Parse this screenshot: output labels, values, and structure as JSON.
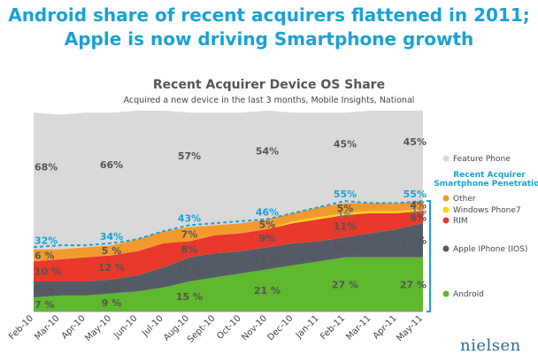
{
  "headline": {
    "line1": "Android share of recent acquirers flattened in 2011;",
    "line2": "Apple is now driving Smartphone growth"
  },
  "brand": {
    "logo_text": "nielsen"
  },
  "chart_data": {
    "type": "area",
    "title": "Recent Acquirer Device OS Share",
    "subtitle": "Acquired a new device in the last 3 months, Mobile Insights, National",
    "xlabel": "",
    "ylabel": "",
    "ylim": [
      0,
      100
    ],
    "grid": false,
    "stacked": true,
    "legend_position": "right",
    "categories": [
      "Feb-10",
      "Mar-10",
      "Apr-10",
      "May-10",
      "Jun-10",
      "Jul-10",
      "Aug-10",
      "Sept-10",
      "Oct-10",
      "Nov-10",
      "Dec-10",
      "Jan-11",
      "Feb-11",
      "Mar-11",
      "Apr-11",
      "May-11"
    ],
    "series": [
      {
        "name": "Android",
        "color": "#5fb82e",
        "values": [
          7,
          8,
          8,
          9,
          10,
          12,
          15,
          17,
          19,
          21,
          23,
          25,
          27,
          27,
          27,
          27
        ]
      },
      {
        "name": "Apple IPhone (IOS)",
        "color": "#555b66",
        "values": [
          8,
          7,
          7,
          7,
          8,
          10,
          12,
          12,
          11,
          11,
          11,
          10,
          10,
          12,
          14,
          17
        ]
      },
      {
        "name": "RIM",
        "color": "#e8392c",
        "values": [
          10,
          11,
          12,
          12,
          12,
          12,
          8,
          9,
          9,
          9,
          10,
          11,
          11,
          10,
          8,
          6
        ]
      },
      {
        "name": "Windows Phone7",
        "color": "#f7d419",
        "values": [
          0,
          0,
          0,
          0,
          0,
          0,
          0,
          0,
          0,
          0,
          1,
          1,
          1,
          1,
          1,
          1
        ]
      },
      {
        "name": "Other",
        "color": "#f39a2e",
        "values": [
          6,
          5,
          5,
          5,
          6,
          6,
          7,
          5,
          5,
          5,
          4,
          5,
          5,
          4,
          4,
          4
        ]
      },
      {
        "name": "Feature Phone",
        "color": "#d9d9d9",
        "values": [
          68,
          67,
          67,
          66,
          64,
          60,
          57,
          56,
          55,
          54,
          50,
          47,
          45,
          46,
          46,
          45
        ]
      }
    ],
    "penetration": {
      "name": "Recent Acquirer Smartphone Penetration",
      "color": "#1aa1d6",
      "values": [
        32,
        33,
        33,
        34,
        36,
        40,
        43,
        44,
        45,
        46,
        49,
        52,
        55,
        54,
        54,
        55
      ]
    },
    "data_labels": [
      {
        "series": "Feature Phone",
        "index": 0,
        "text": "68%"
      },
      {
        "series": "Feature Phone",
        "index": 3,
        "text": "66%"
      },
      {
        "series": "Feature Phone",
        "index": 6,
        "text": "57%"
      },
      {
        "series": "Feature Phone",
        "index": 9,
        "text": "54%"
      },
      {
        "series": "Feature Phone",
        "index": 12,
        "text": "45%"
      },
      {
        "series": "Feature Phone",
        "index": 15,
        "text": "45%"
      },
      {
        "series": "penetration",
        "index": 0,
        "text": "32%"
      },
      {
        "series": "penetration",
        "index": 3,
        "text": "34%"
      },
      {
        "series": "penetration",
        "index": 6,
        "text": "43%"
      },
      {
        "series": "penetration",
        "index": 9,
        "text": "46%"
      },
      {
        "series": "penetration",
        "index": 12,
        "text": "55%"
      },
      {
        "series": "penetration",
        "index": 15,
        "text": "55%"
      },
      {
        "series": "Other",
        "index": 0,
        "text": "6 %"
      },
      {
        "series": "Other",
        "index": 3,
        "text": "5 %"
      },
      {
        "series": "Other",
        "index": 6,
        "text": "7%"
      },
      {
        "series": "Other",
        "index": 9,
        "text": "5%"
      },
      {
        "series": "Other",
        "index": 12,
        "text": "5%"
      },
      {
        "series": "Other",
        "index": 15,
        "text": "4%"
      },
      {
        "series": "Windows Phone7",
        "index": 12,
        "text": "1%"
      },
      {
        "series": "Windows Phone7",
        "index": 15,
        "text": "1%"
      },
      {
        "series": "RIM",
        "index": 0,
        "text": "10 %"
      },
      {
        "series": "RIM",
        "index": 3,
        "text": "12 %"
      },
      {
        "series": "RIM",
        "index": 6,
        "text": "8%"
      },
      {
        "series": "RIM",
        "index": 9,
        "text": "9%"
      },
      {
        "series": "RIM",
        "index": 12,
        "text": "11%"
      },
      {
        "series": "RIM",
        "index": 15,
        "text": "6%"
      },
      {
        "series": "Apple IPhone (IOS)",
        "index": 0,
        "text": "8 %"
      },
      {
        "series": "Apple IPhone (IOS)",
        "index": 3,
        "text": "7 %"
      },
      {
        "series": "Apple IPhone (IOS)",
        "index": 6,
        "text": "12 %"
      },
      {
        "series": "Apple IPhone (IOS)",
        "index": 9,
        "text": "11 %"
      },
      {
        "series": "Apple IPhone (IOS)",
        "index": 12,
        "text": "10 %"
      },
      {
        "series": "Apple IPhone (IOS)",
        "index": 15,
        "text": "17 %"
      },
      {
        "series": "Android",
        "index": 0,
        "text": "7 %"
      },
      {
        "series": "Android",
        "index": 3,
        "text": "9 %"
      },
      {
        "series": "Android",
        "index": 6,
        "text": "15 %"
      },
      {
        "series": "Android",
        "index": 9,
        "text": "21 %"
      },
      {
        "series": "Android",
        "index": 12,
        "text": "27 %"
      },
      {
        "series": "Android",
        "index": 15,
        "text": "27 %"
      }
    ],
    "legend": [
      {
        "label": "Feature Phone",
        "color": "#d9d9d9",
        "kind": "dot"
      },
      {
        "label": "Recent Acquirer Smartphone Penetration",
        "color": "#1aa1d6",
        "kind": "bracket-title"
      },
      {
        "label": "Other",
        "color": "#f39a2e",
        "kind": "dot"
      },
      {
        "label": "Windows Phone7",
        "color": "#f7d419",
        "kind": "dot"
      },
      {
        "label": "RIM",
        "color": "#e8392c",
        "kind": "dot"
      },
      {
        "label": "Apple IPhone (IOS)",
        "color": "#555b66",
        "kind": "dot"
      },
      {
        "label": "Android",
        "color": "#5fb82e",
        "kind": "dot"
      }
    ]
  }
}
